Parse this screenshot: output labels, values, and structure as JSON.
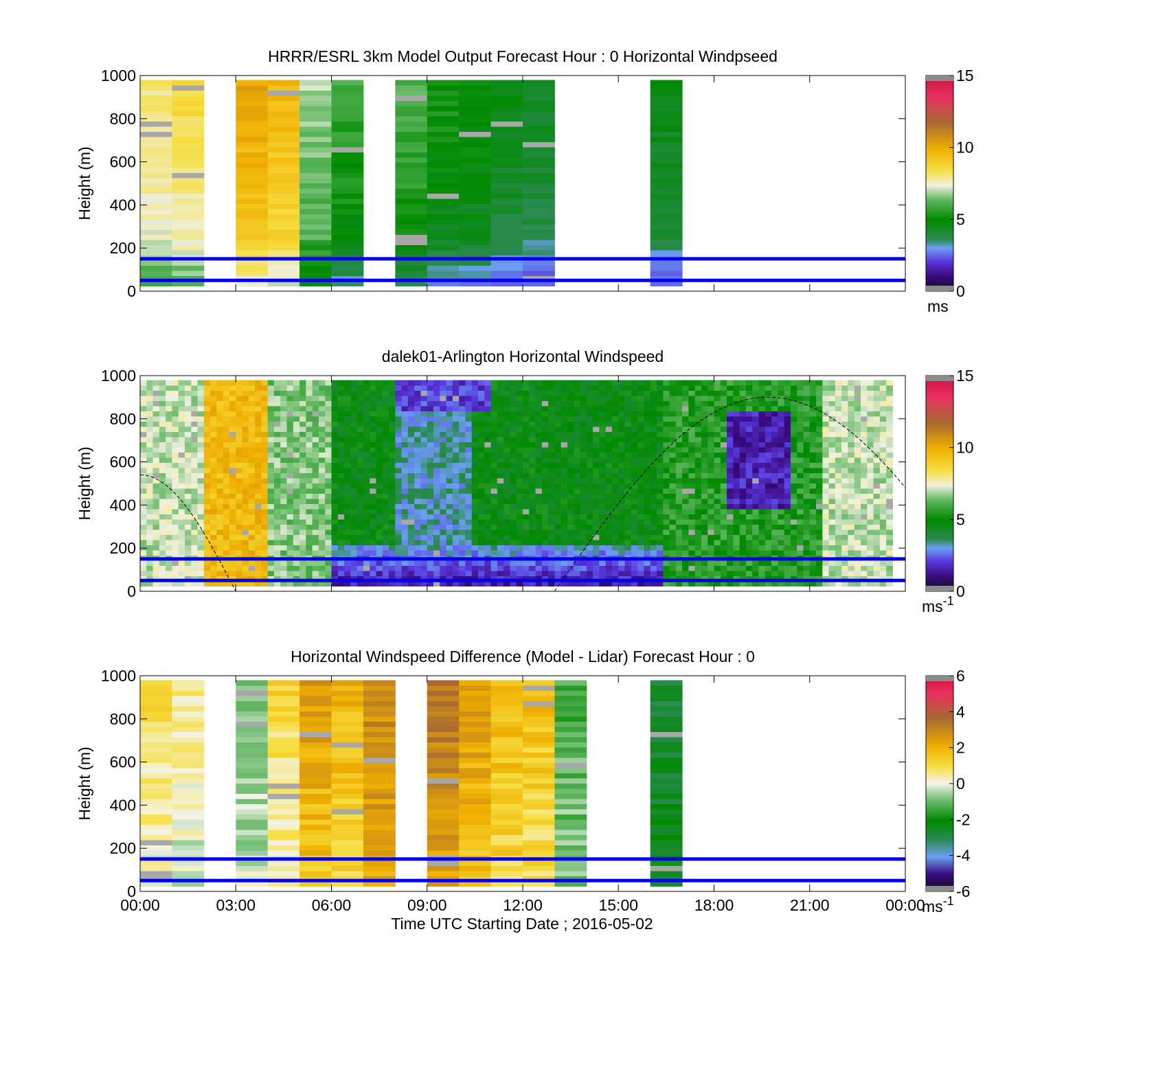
{
  "figure": {
    "xlabel": "Time UTC  Starting Date ; 2016-05-02",
    "x_tick_labels": [
      "00:00",
      "03:00",
      "06:00",
      "09:00",
      "12:00",
      "15:00",
      "18:00",
      "21:00",
      "00:00"
    ],
    "reference_lines_height_m": [
      50,
      150
    ],
    "reference_line_color": "#0000ee"
  },
  "chart_data": [
    {
      "type": "heatmap",
      "title": "HRRR/ESRL 3km Model Output   Forecast Hour : 0 Horizontal Windpseed",
      "ylabel": "Height (m)",
      "xlim_hours": [
        0,
        24
      ],
      "ylim": [
        0,
        1000
      ],
      "y_ticks": [
        "0",
        "200",
        "400",
        "600",
        "800",
        "1000"
      ],
      "colorbar": {
        "ticks": [
          "0",
          "5",
          "10",
          "15"
        ],
        "range": [
          0,
          15
        ],
        "unit": "ms"
      },
      "hourly_columns_hour_start": [
        0,
        1,
        3,
        4,
        5,
        6,
        8,
        9,
        10,
        11,
        12,
        16
      ],
      "approx_speed_ms_by_column": [
        7.6,
        8.0,
        9.5,
        9.0,
        6.3,
        5.2,
        5.5,
        4.8,
        4.7,
        4.3,
        4.0,
        4.2
      ],
      "missing_hours": [
        2,
        7,
        13,
        14,
        15,
        17,
        18,
        19,
        20,
        21,
        22,
        23
      ]
    },
    {
      "type": "heatmap",
      "title": "dalek01-Arlington  Horizontal Windspeed",
      "ylabel": "Height (m)",
      "xlim_hours": [
        0,
        24
      ],
      "ylim": [
        0,
        1000
      ],
      "y_ticks": [
        "0",
        "200",
        "400",
        "600",
        "800",
        "1000"
      ],
      "colorbar": {
        "ticks": [
          "0",
          "5",
          "10",
          "15"
        ],
        "range": [
          0,
          15
        ],
        "unit": "ms",
        "unit_exp": "-1"
      },
      "approx_regimes": [
        {
          "hours": [
            0,
            2
          ],
          "speed_ms": 7
        },
        {
          "hours": [
            2,
            4
          ],
          "speed_ms": 9.5
        },
        {
          "hours": [
            4,
            6
          ],
          "speed_ms": 6.5
        },
        {
          "hours": [
            6,
            16.5
          ],
          "speed_ms": 4.5,
          "low_level_jet_min_ms": 1
        },
        {
          "hours": [
            18.5,
            20.5
          ],
          "height_m": [
            400,
            850
          ],
          "speed_ms": 1.5
        },
        {
          "hours": [
            21.5,
            24
          ],
          "speed_ms": 7
        }
      ],
      "dashed_curve_peak": {
        "hour": 19.7,
        "height_m": 900
      }
    },
    {
      "type": "heatmap",
      "title": "Horizontal Windspeed Difference (Model - Lidar) Forecast Hour : 0",
      "ylabel": "Height (m)",
      "xlim_hours": [
        0,
        24
      ],
      "ylim": [
        0,
        1000
      ],
      "y_ticks": [
        "0",
        "200",
        "400",
        "600",
        "800",
        "1000"
      ],
      "colorbar": {
        "ticks": [
          "-6",
          "-4",
          "-2",
          "0",
          "2",
          "4",
          "6"
        ],
        "range": [
          -6,
          6
        ],
        "unit": "ms",
        "unit_exp": "-1"
      },
      "hourly_columns_hour_start": [
        0,
        1,
        3,
        4,
        5,
        6,
        7,
        9,
        10,
        11,
        12,
        13,
        16
      ],
      "approx_difference_ms_by_column": [
        0.5,
        0.2,
        -0.5,
        0.7,
        2.0,
        1.5,
        2.5,
        2.8,
        2.0,
        1.5,
        1.3,
        -1.0,
        -2.5
      ]
    }
  ]
}
